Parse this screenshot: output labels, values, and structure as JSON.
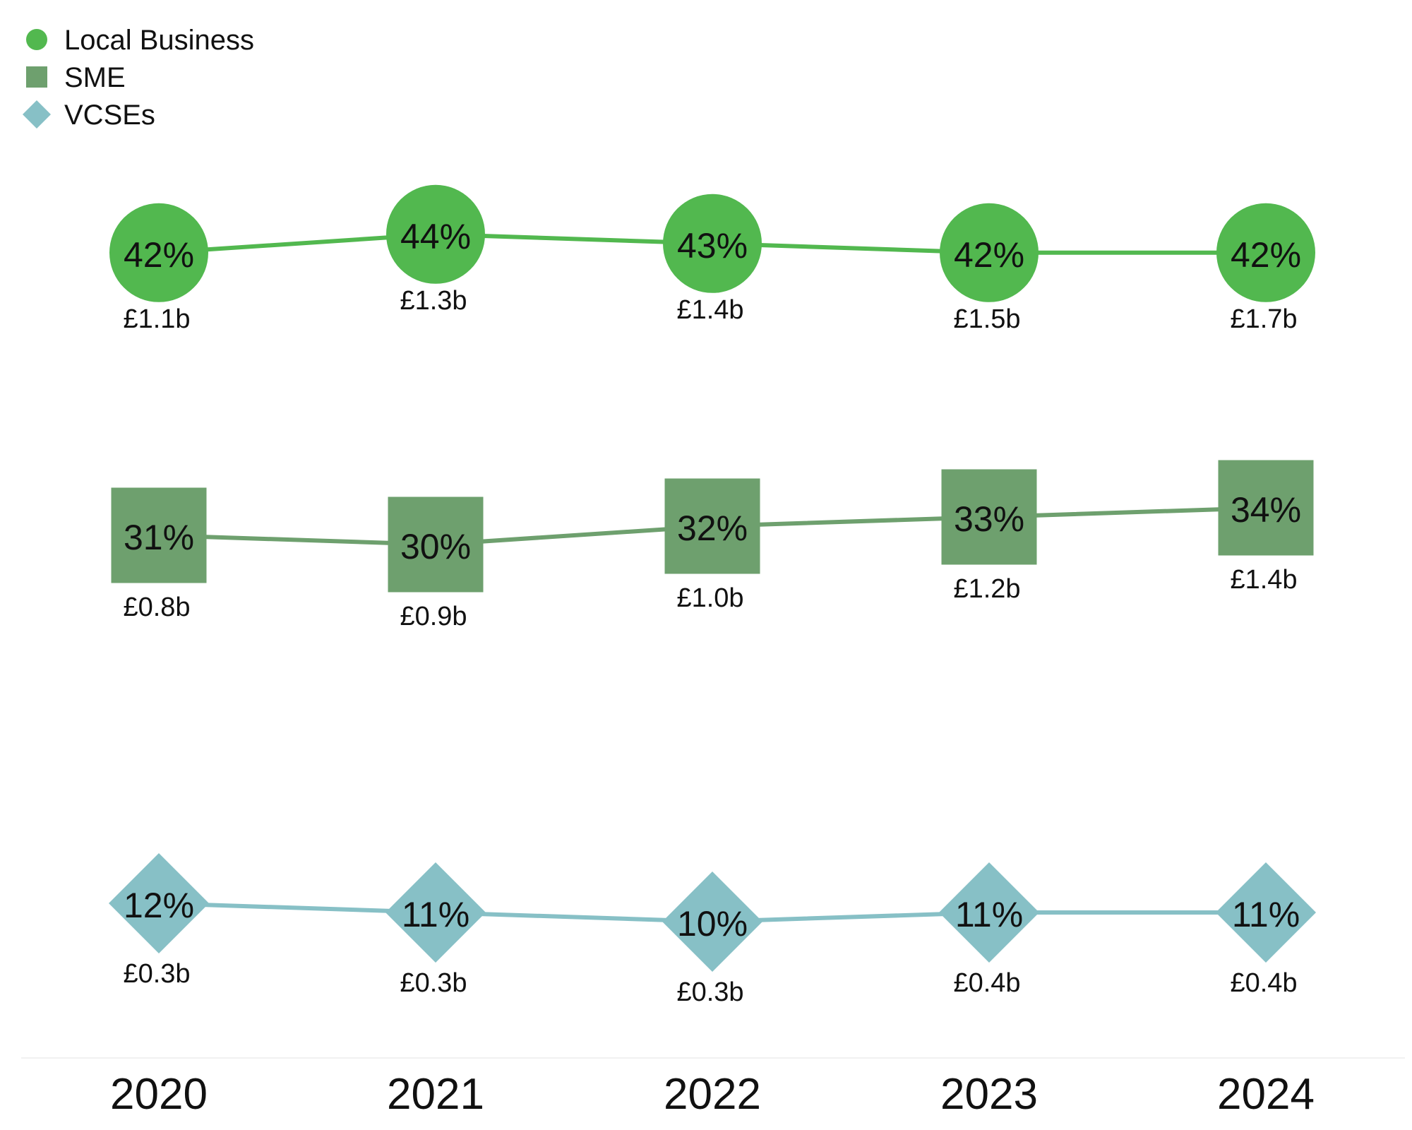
{
  "chart_data": {
    "type": "line",
    "categories": [
      "2020",
      "2021",
      "2022",
      "2023",
      "2024"
    ],
    "legend_position": "top-left",
    "grid": false,
    "series": [
      {
        "name": "Local Business",
        "marker": "circle",
        "color": "#52b84f",
        "values": [
          42,
          44,
          43,
          42,
          42
        ],
        "labels": [
          "42%",
          "44%",
          "43%",
          "42%",
          "42%"
        ],
        "amounts": [
          "£1.1b",
          "£1.3b",
          "£1.4b",
          "£1.5b",
          "£1.7b"
        ]
      },
      {
        "name": "SME",
        "marker": "square",
        "color": "#6ea06e",
        "values": [
          31,
          30,
          32,
          33,
          34
        ],
        "labels": [
          "31%",
          "30%",
          "32%",
          "33%",
          "34%"
        ],
        "amounts": [
          "£0.8b",
          "£0.9b",
          "£1.0b",
          "£1.2b",
          "£1.4b"
        ]
      },
      {
        "name": "VCSEs",
        "marker": "diamond",
        "color": "#87c0c6",
        "values": [
          12,
          11,
          10,
          11,
          11
        ],
        "labels": [
          "12%",
          "11%",
          "10%",
          "11%",
          "11%"
        ],
        "amounts": [
          "£0.3b",
          "£0.3b",
          "£0.3b",
          "£0.4b",
          "£0.4b"
        ]
      }
    ]
  }
}
